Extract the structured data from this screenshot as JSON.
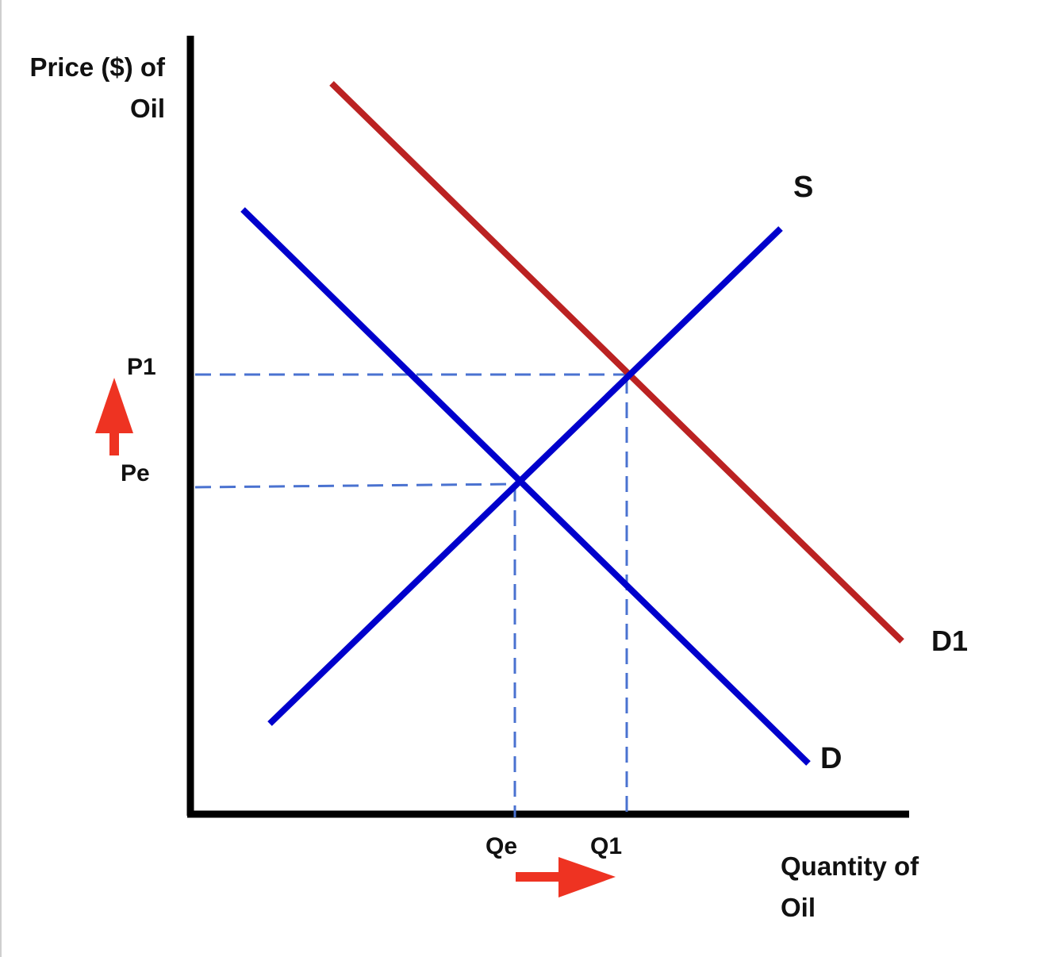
{
  "axes": {
    "y_label_line1": "Price ($) of",
    "y_label_line2": "Oil",
    "x_label_line1": "Quantity of",
    "x_label_line2": "Oil"
  },
  "curves": {
    "supply_label": "S",
    "demand_label": "D",
    "new_demand_label": "D1"
  },
  "price_marks": {
    "p1": "P1",
    "pe": "Pe"
  },
  "quantity_marks": {
    "qe": "Qe",
    "q1": "Q1"
  },
  "colors": {
    "original_curves": "#0000cc",
    "shifted_demand": "#bb2222",
    "guide_lines": "#4a72d0",
    "arrows": "#ee3322",
    "axes": "#000000"
  }
}
